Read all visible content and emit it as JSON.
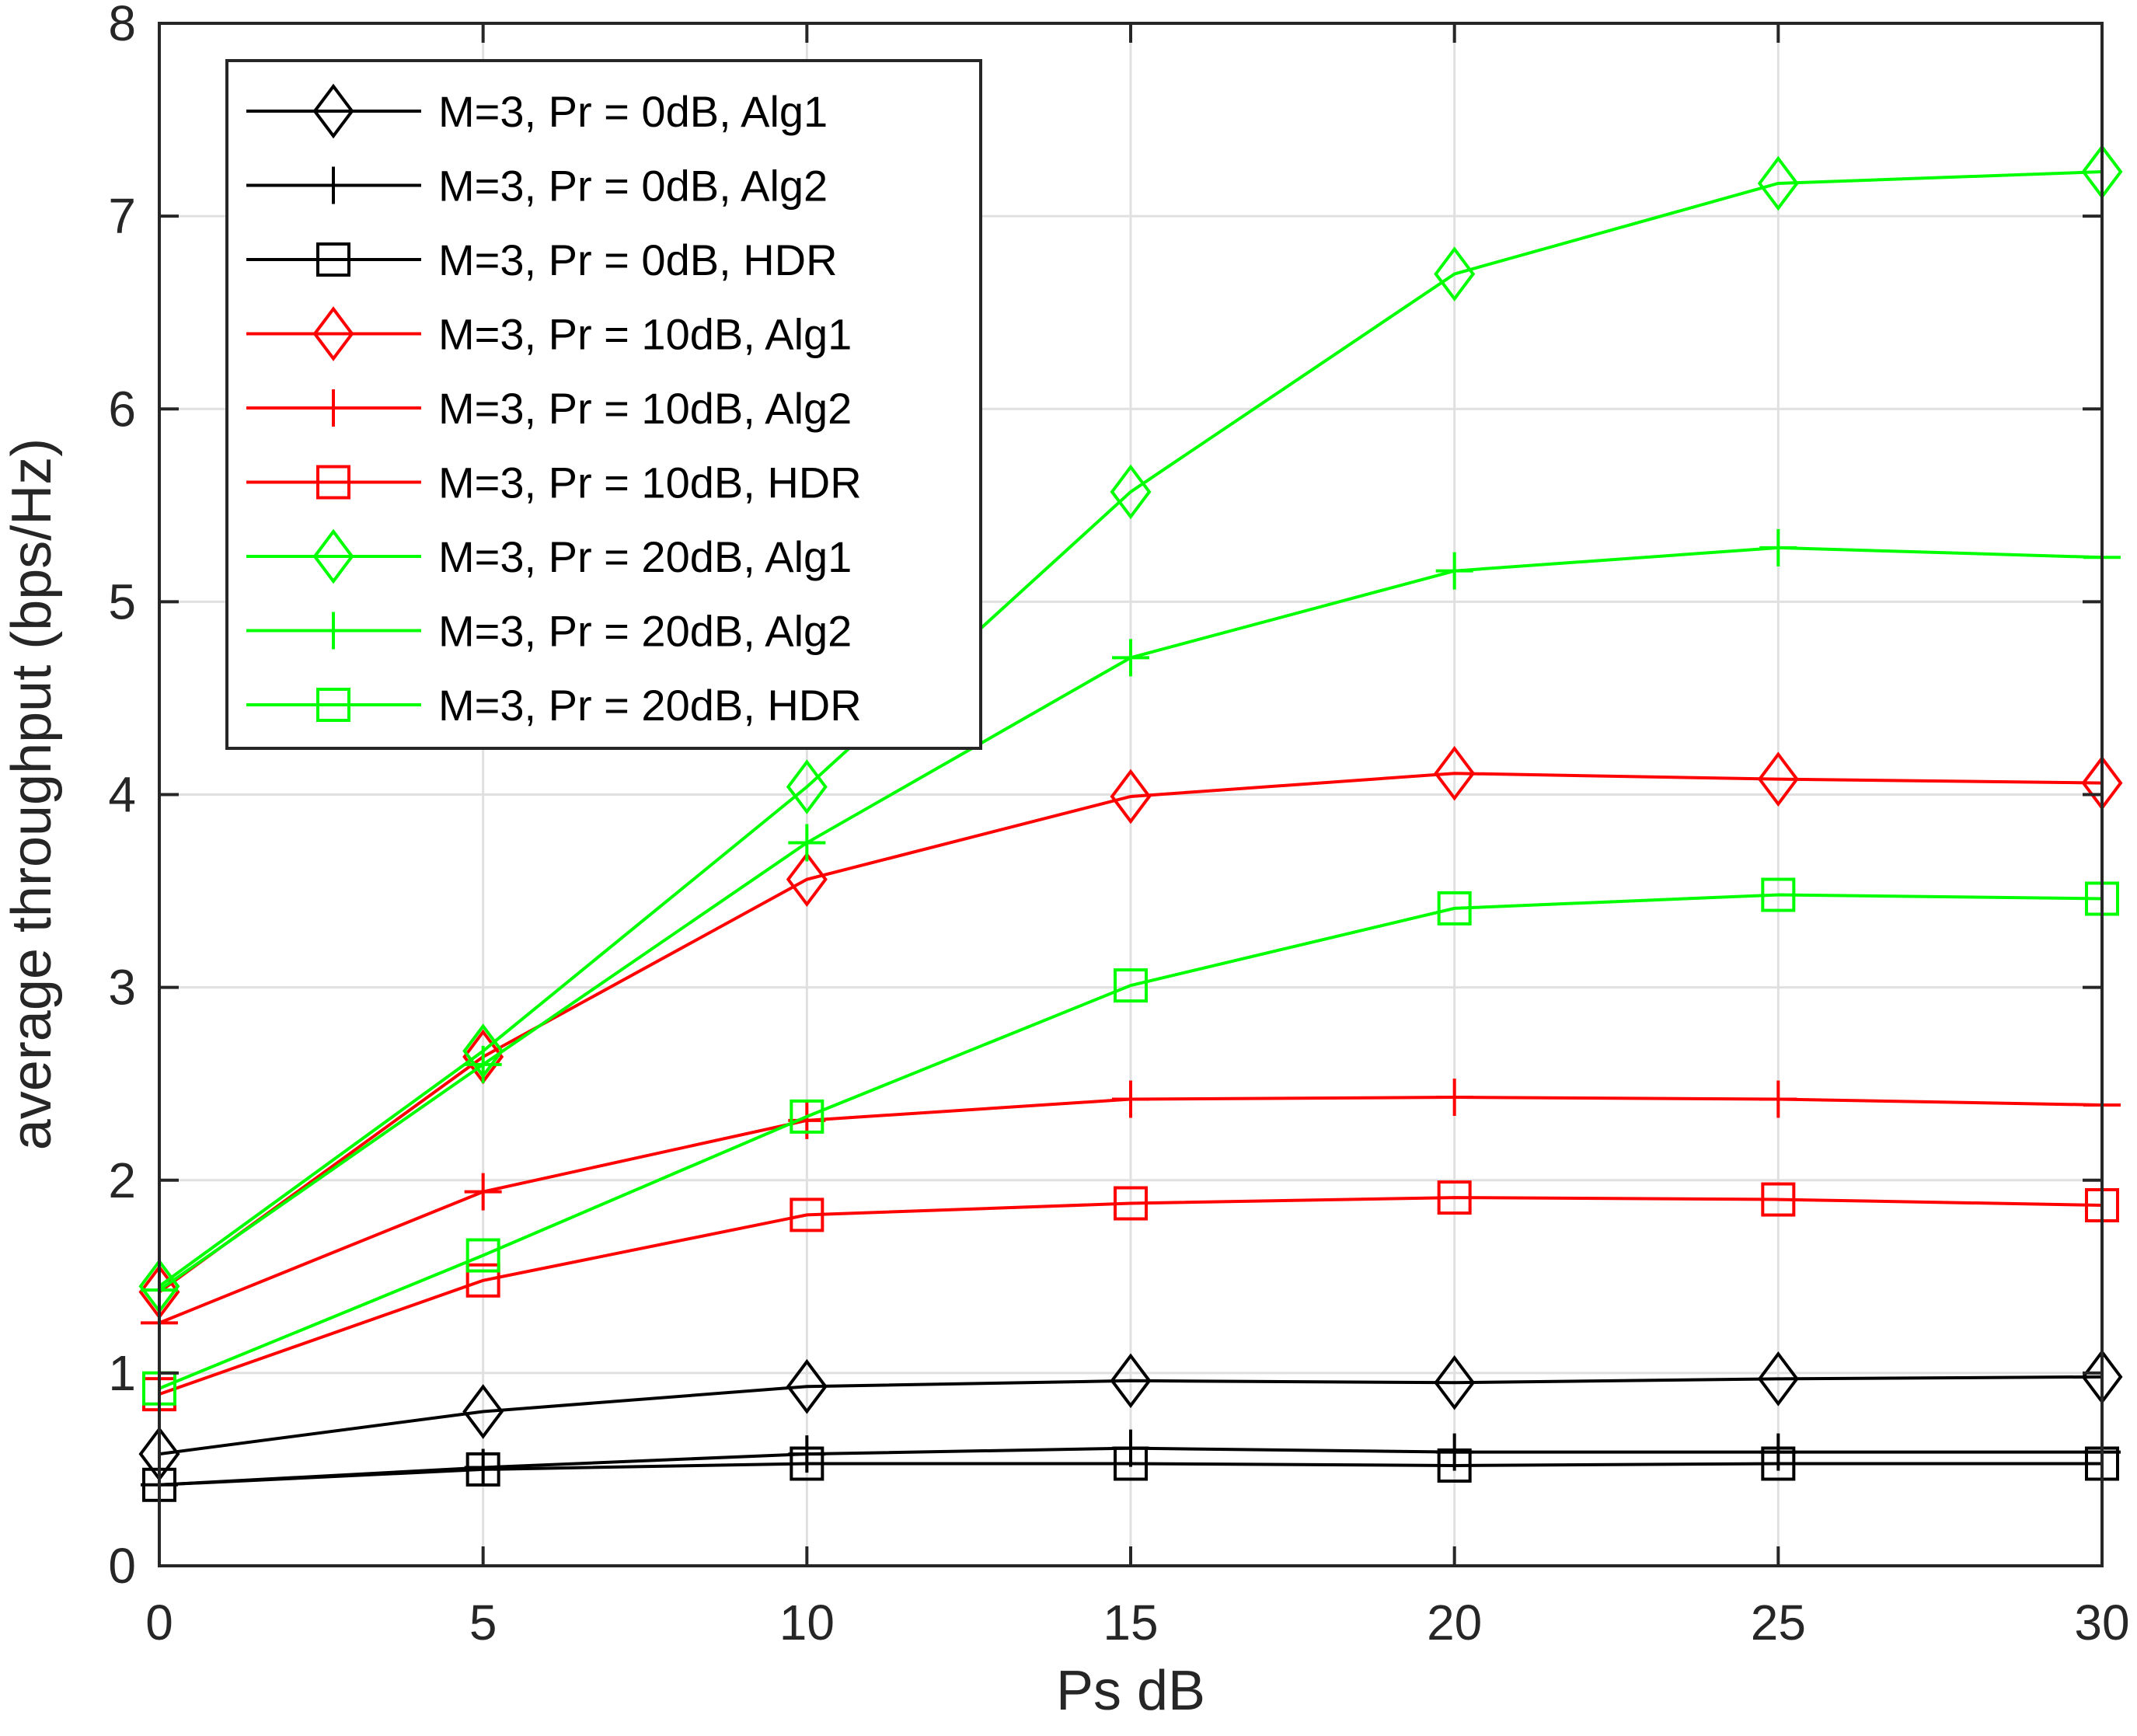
{
  "chart_data": {
    "type": "line",
    "title": "",
    "xlabel": "Ps dB",
    "ylabel": "average throughput (bps/Hz)",
    "xlim": [
      0,
      30
    ],
    "ylim": [
      0,
      8
    ],
    "xticks": [
      0,
      5,
      10,
      15,
      20,
      25,
      30
    ],
    "yticks": [
      0,
      1,
      2,
      3,
      4,
      5,
      6,
      7,
      8
    ],
    "grid": true,
    "legend_position": "top-left",
    "x": [
      0,
      5,
      10,
      15,
      20,
      25,
      30
    ],
    "series": [
      {
        "name": "M=3, Pr = 0dB, Alg1",
        "color": "#000000",
        "marker": "diamond",
        "values": [
          0.58,
          0.8,
          0.93,
          0.96,
          0.95,
          0.97,
          0.98
        ]
      },
      {
        "name": "M=3, Pr = 0dB, Alg2",
        "color": "#000000",
        "marker": "plus",
        "values": [
          0.42,
          0.51,
          0.58,
          0.61,
          0.59,
          0.59,
          0.59
        ]
      },
      {
        "name": "M=3, Pr = 0dB, HDR",
        "color": "#000000",
        "marker": "square",
        "values": [
          0.42,
          0.5,
          0.53,
          0.53,
          0.52,
          0.53,
          0.53
        ]
      },
      {
        "name": "M=3, Pr = 10dB, Alg1",
        "color": "#ff0000",
        "marker": "diamond",
        "values": [
          1.42,
          2.64,
          3.56,
          3.99,
          4.11,
          4.08,
          4.06
        ]
      },
      {
        "name": "M=3, Pr = 10dB, Alg2",
        "color": "#ff0000",
        "marker": "plus",
        "values": [
          1.26,
          1.94,
          2.31,
          2.42,
          2.43,
          2.42,
          2.39
        ]
      },
      {
        "name": "M=3, Pr = 10dB, HDR",
        "color": "#ff0000",
        "marker": "square",
        "values": [
          0.89,
          1.48,
          1.82,
          1.88,
          1.91,
          1.9,
          1.87
        ]
      },
      {
        "name": "M=3, Pr = 20dB, Alg1",
        "color": "#00ff00",
        "marker": "diamond",
        "values": [
          1.45,
          2.67,
          4.04,
          5.57,
          6.7,
          7.17,
          7.23
        ]
      },
      {
        "name": "M=3, Pr = 20dB, Alg2",
        "color": "#00ff00",
        "marker": "plus",
        "values": [
          1.43,
          2.6,
          3.75,
          4.71,
          5.16,
          5.28,
          5.23
        ]
      },
      {
        "name": "M=3, Pr = 20dB, HDR",
        "color": "#00ff00",
        "marker": "square",
        "values": [
          0.92,
          1.61,
          2.33,
          3.01,
          3.41,
          3.48,
          3.46
        ]
      }
    ]
  }
}
